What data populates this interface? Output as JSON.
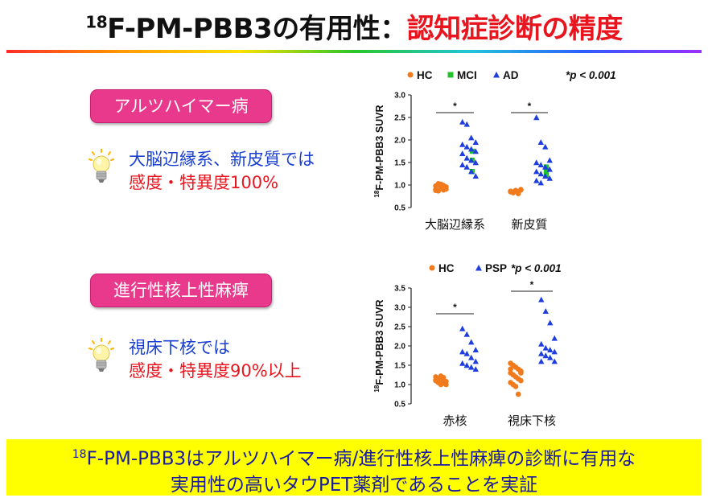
{
  "title": {
    "sup": "18",
    "main": "F-PM-PBB3の有用性：",
    "accent": "認知症診断の精度"
  },
  "sections": [
    {
      "pill": "アルツハイマー病",
      "line1": "大脳辺縁系、新皮質では",
      "line2": "感度・特異度100%"
    },
    {
      "pill": "進行性核上性麻痺",
      "line1": "視床下核では",
      "line2": "感度・特異度90%以上"
    }
  ],
  "colors": {
    "hc": "#f07a1c",
    "mci": "#22c32e",
    "ad": "#1f3ee0",
    "psp": "#1f3ee0",
    "pill": "#e9398d",
    "title_red": "#e8141e",
    "footer_bg": "#ffff00"
  },
  "icons": [
    "lightbulb-icon"
  ],
  "chart_data": [
    {
      "type": "scatter",
      "ylabel": "18F-PM-PBB3 SUVR",
      "ylabel_sup": "18",
      "ylabel_main": "F-PM-PBB3 SUVR",
      "ylim": [
        0.5,
        3.0
      ],
      "yticks": [
        "0.5",
        "1.0",
        "1.5",
        "2.0",
        "2.5",
        "3.0"
      ],
      "categories": [
        "大脳辺縁系",
        "新皮質"
      ],
      "legend": [
        "HC",
        "MCI",
        "AD"
      ],
      "annotation": "*p < 0.001",
      "significance": [
        "*",
        "*"
      ],
      "series": [
        {
          "name": "HC",
          "values": [
            [
              0.98,
              1.03,
              1.02,
              0.92,
              0.96,
              0.9,
              0.87,
              0.94,
              0.99,
              0.91,
              0.88,
              1.0,
              0.93,
              0.89
            ],
            [
              0.86,
              0.84,
              0.88,
              0.82,
              0.9,
              0.85,
              0.83,
              0.87,
              0.81,
              0.89,
              0.86,
              0.84
            ]
          ]
        },
        {
          "name": "MCI",
          "values": [
            [
              1.75,
              1.55,
              1.3
            ],
            [
              1.3,
              1.4,
              1.2
            ]
          ]
        },
        {
          "name": "AD",
          "values": [
            [
              2.4,
              2.35,
              2.05,
              1.95,
              1.9,
              1.85,
              1.8,
              1.75,
              1.7,
              1.6,
              1.55,
              1.5,
              1.45,
              1.4,
              1.3,
              1.2
            ],
            [
              2.5,
              1.95,
              1.85,
              1.55,
              1.5,
              1.45,
              1.4,
              1.35,
              1.3,
              1.25,
              1.2,
              1.15,
              1.1,
              1.05
            ]
          ]
        }
      ]
    },
    {
      "type": "scatter",
      "ylabel": "18F-PM-PBB3 SUVR",
      "ylabel_sup": "18",
      "ylabel_main": "F-PM-PBB3 SUVR",
      "ylim": [
        0.5,
        3.5
      ],
      "yticks": [
        "0.5",
        "1.0",
        "1.5",
        "2.0",
        "2.5",
        "3.0",
        "3.5"
      ],
      "categories": [
        "赤核",
        "視床下核"
      ],
      "legend": [
        "HC",
        "PSP"
      ],
      "annotation": "*p < 0.001",
      "significance": [
        "*",
        "*"
      ],
      "series": [
        {
          "name": "HC",
          "values": [
            [
              1.2,
              1.15,
              1.1,
              1.05,
              1.0,
              1.1,
              1.15,
              1.22,
              1.18,
              1.08,
              1.12,
              1.05,
              1.0,
              1.12
            ],
            [
              1.55,
              1.5,
              1.45,
              1.4,
              1.35,
              1.3,
              1.25,
              1.2,
              1.15,
              1.1,
              1.05,
              1.0,
              0.95,
              0.75,
              1.3,
              1.4
            ]
          ]
        },
        {
          "name": "PSP",
          "values": [
            [
              2.45,
              2.3,
              2.1,
              1.9,
              1.85,
              1.8,
              1.7,
              1.6,
              1.55,
              1.5,
              1.45,
              1.4
            ],
            [
              3.2,
              2.9,
              2.6,
              2.2,
              2.05,
              1.95,
              1.9,
              1.85,
              1.8,
              1.75,
              1.7,
              1.6,
              1.6
            ]
          ]
        }
      ]
    }
  ],
  "footer": {
    "sup": "18",
    "line1": "F-PM-PBB3はアルツハイマー病/進行性核上性麻痺の診断に有用な",
    "line2": "実用性の高いタウPET薬剤であることを実証"
  }
}
